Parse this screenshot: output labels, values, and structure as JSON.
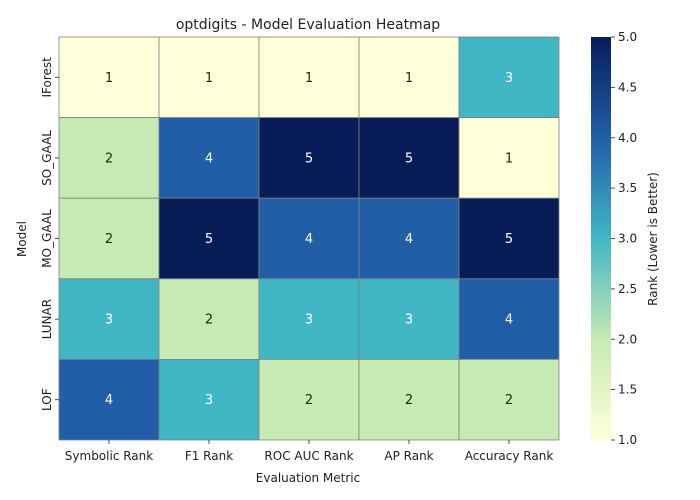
{
  "chart_data": {
    "type": "heatmap",
    "title": "optdigits - Model Evaluation Heatmap",
    "xlabel": "Evaluation Metric",
    "ylabel": "Model",
    "x_categories": [
      "Symbolic Rank",
      "F1 Rank",
      "ROC AUC Rank",
      "AP Rank",
      "Accuracy Rank"
    ],
    "y_categories": [
      "IForest",
      "SO_GAAL",
      "MO_GAAL",
      "LUNAR",
      "LOF"
    ],
    "values": [
      [
        1,
        1,
        1,
        1,
        3
      ],
      [
        2,
        4,
        5,
        5,
        1
      ],
      [
        2,
        5,
        4,
        4,
        5
      ],
      [
        3,
        2,
        3,
        3,
        4
      ],
      [
        4,
        3,
        2,
        2,
        2
      ]
    ],
    "colorbar": {
      "label": "Rank (Lower is Better)",
      "range": [
        1,
        5
      ],
      "ticks": [
        "1.0",
        "1.5",
        "2.0",
        "2.5",
        "3.0",
        "3.5",
        "4.0",
        "4.5",
        "5.0"
      ],
      "colormap": "YlGnBu",
      "colors": [
        "#ffffd9",
        "#c7e9b4",
        "#41b6c4",
        "#225ea8",
        "#081d58"
      ]
    },
    "grid_line_color": "#808080"
  }
}
